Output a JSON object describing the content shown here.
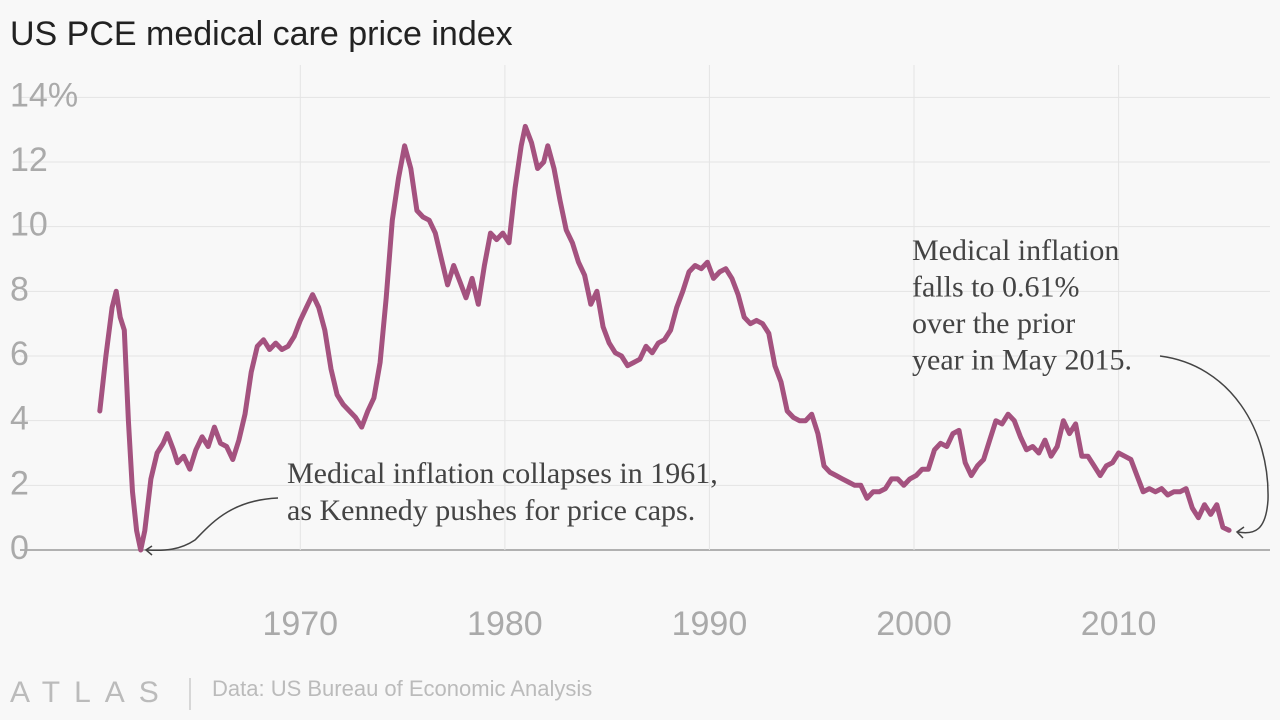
{
  "chart_data": {
    "type": "line",
    "title": "US PCE medical care price index",
    "source": "Data: US Bureau of Economic Analysis",
    "logo": "ATLAS",
    "xlim": [
      1956.3,
      2017.4
    ],
    "xticks": [
      1970,
      1980,
      1990,
      2000,
      2010
    ],
    "ylim": [
      0,
      15
    ],
    "yticks": [
      0,
      2,
      4,
      6,
      8,
      10,
      12,
      {
        "value": 14,
        "label": "14%"
      }
    ],
    "grid": true,
    "annotations": [
      {
        "lines": [
          "Medical inflation collapses in 1961,",
          "as Kennedy pushes for price caps."
        ]
      },
      {
        "lines": [
          "Medical inflation",
          "falls to 0.61%",
          "over the prior",
          "year in May 2015."
        ]
      }
    ],
    "series": [
      {
        "name": "US PCE medical care price index",
        "color": "#a4527f",
        "x": [
          1960.2,
          1960.5,
          1960.8,
          1961.0,
          1961.2,
          1961.4,
          1961.6,
          1961.8,
          1962.0,
          1962.2,
          1962.4,
          1962.7,
          1963.0,
          1963.3,
          1963.5,
          1963.8,
          1964.0,
          1964.3,
          1964.6,
          1964.9,
          1965.2,
          1965.5,
          1965.8,
          1966.1,
          1966.4,
          1966.7,
          1967.0,
          1967.3,
          1967.6,
          1967.9,
          1968.2,
          1968.5,
          1968.8,
          1969.1,
          1969.4,
          1969.7,
          1970.0,
          1970.3,
          1970.6,
          1970.9,
          1971.2,
          1971.5,
          1971.8,
          1972.1,
          1972.4,
          1972.7,
          1973.0,
          1973.3,
          1973.6,
          1973.9,
          1974.2,
          1974.5,
          1974.8,
          1975.1,
          1975.4,
          1975.7,
          1976.0,
          1976.3,
          1976.6,
          1976.9,
          1977.2,
          1977.5,
          1977.8,
          1978.1,
          1978.4,
          1978.7,
          1979.0,
          1979.3,
          1979.6,
          1979.9,
          1980.2,
          1980.5,
          1980.8,
          1981.0,
          1981.3,
          1981.6,
          1981.9,
          1982.1,
          1982.4,
          1982.7,
          1983.0,
          1983.3,
          1983.6,
          1983.9,
          1984.2,
          1984.5,
          1984.8,
          1985.1,
          1985.4,
          1985.7,
          1986.0,
          1986.3,
          1986.6,
          1986.9,
          1987.2,
          1987.5,
          1987.8,
          1988.1,
          1988.4,
          1988.7,
          1989.0,
          1989.3,
          1989.6,
          1989.9,
          1990.2,
          1990.5,
          1990.8,
          1991.1,
          1991.4,
          1991.7,
          1992.0,
          1992.3,
          1992.6,
          1992.9,
          1993.2,
          1993.5,
          1993.8,
          1994.1,
          1994.4,
          1994.7,
          1995.0,
          1995.3,
          1995.6,
          1995.9,
          1996.2,
          1996.5,
          1996.8,
          1997.1,
          1997.4,
          1997.7,
          1998.0,
          1998.3,
          1998.6,
          1998.9,
          1999.2,
          1999.5,
          1999.8,
          2000.1,
          2000.4,
          2000.7,
          2001.0,
          2001.3,
          2001.6,
          2001.9,
          2002.2,
          2002.5,
          2002.8,
          2003.1,
          2003.4,
          2003.7,
          2004.0,
          2004.3,
          2004.6,
          2004.9,
          2005.2,
          2005.5,
          2005.8,
          2006.1,
          2006.4,
          2006.7,
          2007.0,
          2007.3,
          2007.6,
          2007.9,
          2008.2,
          2008.5,
          2008.8,
          2009.1,
          2009.4,
          2009.7,
          2010.0,
          2010.3,
          2010.6,
          2010.9,
          2011.2,
          2011.5,
          2011.8,
          2012.1,
          2012.4,
          2012.7,
          2013.0,
          2013.3,
          2013.6,
          2013.9,
          2014.2,
          2014.5,
          2014.8,
          2015.1,
          2015.4
        ],
        "values": [
          4.3,
          6.0,
          7.5,
          8.0,
          7.2,
          6.8,
          4.0,
          1.8,
          0.6,
          0.0,
          0.6,
          2.2,
          3.0,
          3.3,
          3.6,
          3.1,
          2.7,
          2.9,
          2.5,
          3.1,
          3.5,
          3.2,
          3.8,
          3.3,
          3.2,
          2.8,
          3.4,
          4.2,
          5.5,
          6.3,
          6.5,
          6.2,
          6.4,
          6.2,
          6.3,
          6.6,
          7.1,
          7.5,
          7.9,
          7.5,
          6.8,
          5.6,
          4.8,
          4.5,
          4.3,
          4.1,
          3.8,
          4.3,
          4.7,
          5.8,
          7.8,
          10.2,
          11.5,
          12.5,
          11.8,
          10.5,
          10.3,
          10.2,
          9.8,
          9.0,
          8.2,
          8.8,
          8.3,
          7.8,
          8.4,
          7.6,
          8.8,
          9.8,
          9.6,
          9.8,
          9.5,
          11.2,
          12.5,
          13.1,
          12.6,
          11.8,
          12.0,
          12.5,
          11.8,
          10.8,
          9.9,
          9.5,
          8.9,
          8.5,
          7.6,
          8.0,
          6.9,
          6.4,
          6.1,
          6.0,
          5.7,
          5.8,
          5.9,
          6.3,
          6.1,
          6.4,
          6.5,
          6.8,
          7.5,
          8.0,
          8.6,
          8.8,
          8.7,
          8.9,
          8.4,
          8.6,
          8.7,
          8.4,
          7.9,
          7.2,
          7.0,
          7.1,
          7.0,
          6.7,
          5.7,
          5.2,
          4.3,
          4.1,
          4.0,
          4.0,
          4.2,
          3.6,
          2.6,
          2.4,
          2.3,
          2.2,
          2.1,
          2.0,
          2.0,
          1.6,
          1.8,
          1.8,
          1.9,
          2.2,
          2.2,
          2.0,
          2.2,
          2.3,
          2.5,
          2.5,
          3.1,
          3.3,
          3.2,
          3.6,
          3.7,
          2.7,
          2.3,
          2.6,
          2.8,
          3.4,
          4.0,
          3.9,
          4.2,
          4.0,
          3.5,
          3.1,
          3.2,
          3.0,
          3.4,
          2.9,
          3.2,
          4.0,
          3.6,
          3.9,
          2.9,
          2.9,
          2.6,
          2.3,
          2.6,
          2.7,
          3.0,
          2.9,
          2.8,
          2.3,
          1.8,
          1.9,
          1.8,
          1.9,
          1.7,
          1.8,
          1.8,
          1.9,
          1.3,
          1.0,
          1.4,
          1.1,
          1.4,
          0.7,
          0.61
        ]
      }
    ]
  }
}
